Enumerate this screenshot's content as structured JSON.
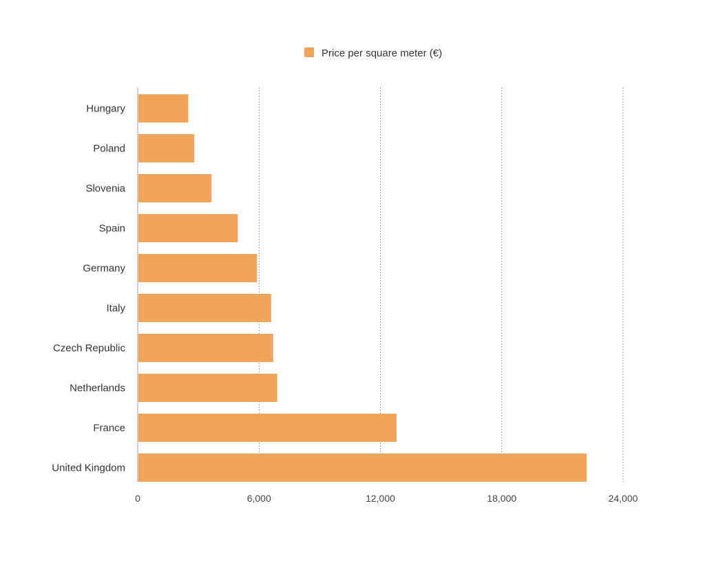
{
  "chart_data": {
    "type": "bar",
    "orientation": "horizontal",
    "categories": [
      "Hungary",
      "Poland",
      "Slovenia",
      "Spain",
      "Germany",
      "Italy",
      "Czech Republic",
      "Netherlands",
      "France",
      "United Kingdom"
    ],
    "series": [
      {
        "name": "Price per square meter (€)",
        "color": "#F0A55A",
        "values": [
          2500,
          2800,
          3650,
          4950,
          5900,
          6600,
          6700,
          6900,
          12800,
          22200
        ]
      }
    ],
    "xlim": [
      0,
      24000
    ],
    "xticks": [
      0,
      6000,
      12000,
      18000,
      24000
    ],
    "xtick_labels": [
      "0",
      "6,000",
      "12,000",
      "18,000",
      "24,000"
    ],
    "grid": "vertical-dashed",
    "legend_position": "top-center"
  }
}
